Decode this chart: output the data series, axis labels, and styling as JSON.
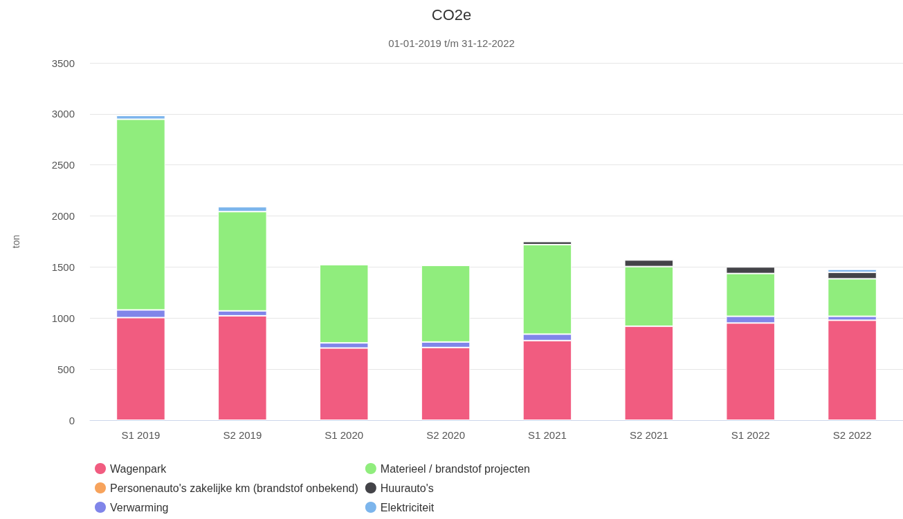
{
  "chart_data": {
    "type": "bar",
    "title": "CO2e",
    "subtitle": "01-01-2019 t/m 31-12-2022",
    "ylabel": "ton",
    "categories": [
      "S1 2019",
      "S2 2019",
      "S1 2020",
      "S2 2020",
      "S1 2021",
      "S2 2021",
      "S1 2022",
      "S2 2022"
    ],
    "stacked": true,
    "ylim": [
      0,
      3500
    ],
    "yticks": [
      0,
      500,
      1000,
      1500,
      2000,
      2500,
      3000,
      3500
    ],
    "grid": "y",
    "legend": "bottom",
    "series": [
      {
        "name": "Wagenpark",
        "color": "#f15c80",
        "values": [
          1005,
          1023,
          707,
          712,
          780,
          920,
          952,
          979
        ]
      },
      {
        "name": "Personenauto's zakelijke km (brandstof onbekend)",
        "color": "#f7a35c",
        "values": [
          null,
          null,
          null,
          null,
          null,
          null,
          null,
          null
        ]
      },
      {
        "name": "Verwarming",
        "color": "#8085e9",
        "values": [
          75,
          48,
          50,
          54,
          63,
          null,
          66,
          39
        ]
      },
      {
        "name": "Materieel / brandstof projecten",
        "color": "#90ed7d",
        "values": [
          1868,
          972,
          766,
          750,
          877,
          585,
          419,
          367
        ]
      },
      {
        "name": "Huurauto's",
        "color": "#434348",
        "values": [
          null,
          null,
          null,
          null,
          30,
          64,
          64,
          63
        ]
      },
      {
        "name": "Elektriciteit",
        "color": "#7cb5ec",
        "values": [
          37,
          48,
          null,
          null,
          null,
          null,
          null,
          30
        ]
      }
    ]
  }
}
